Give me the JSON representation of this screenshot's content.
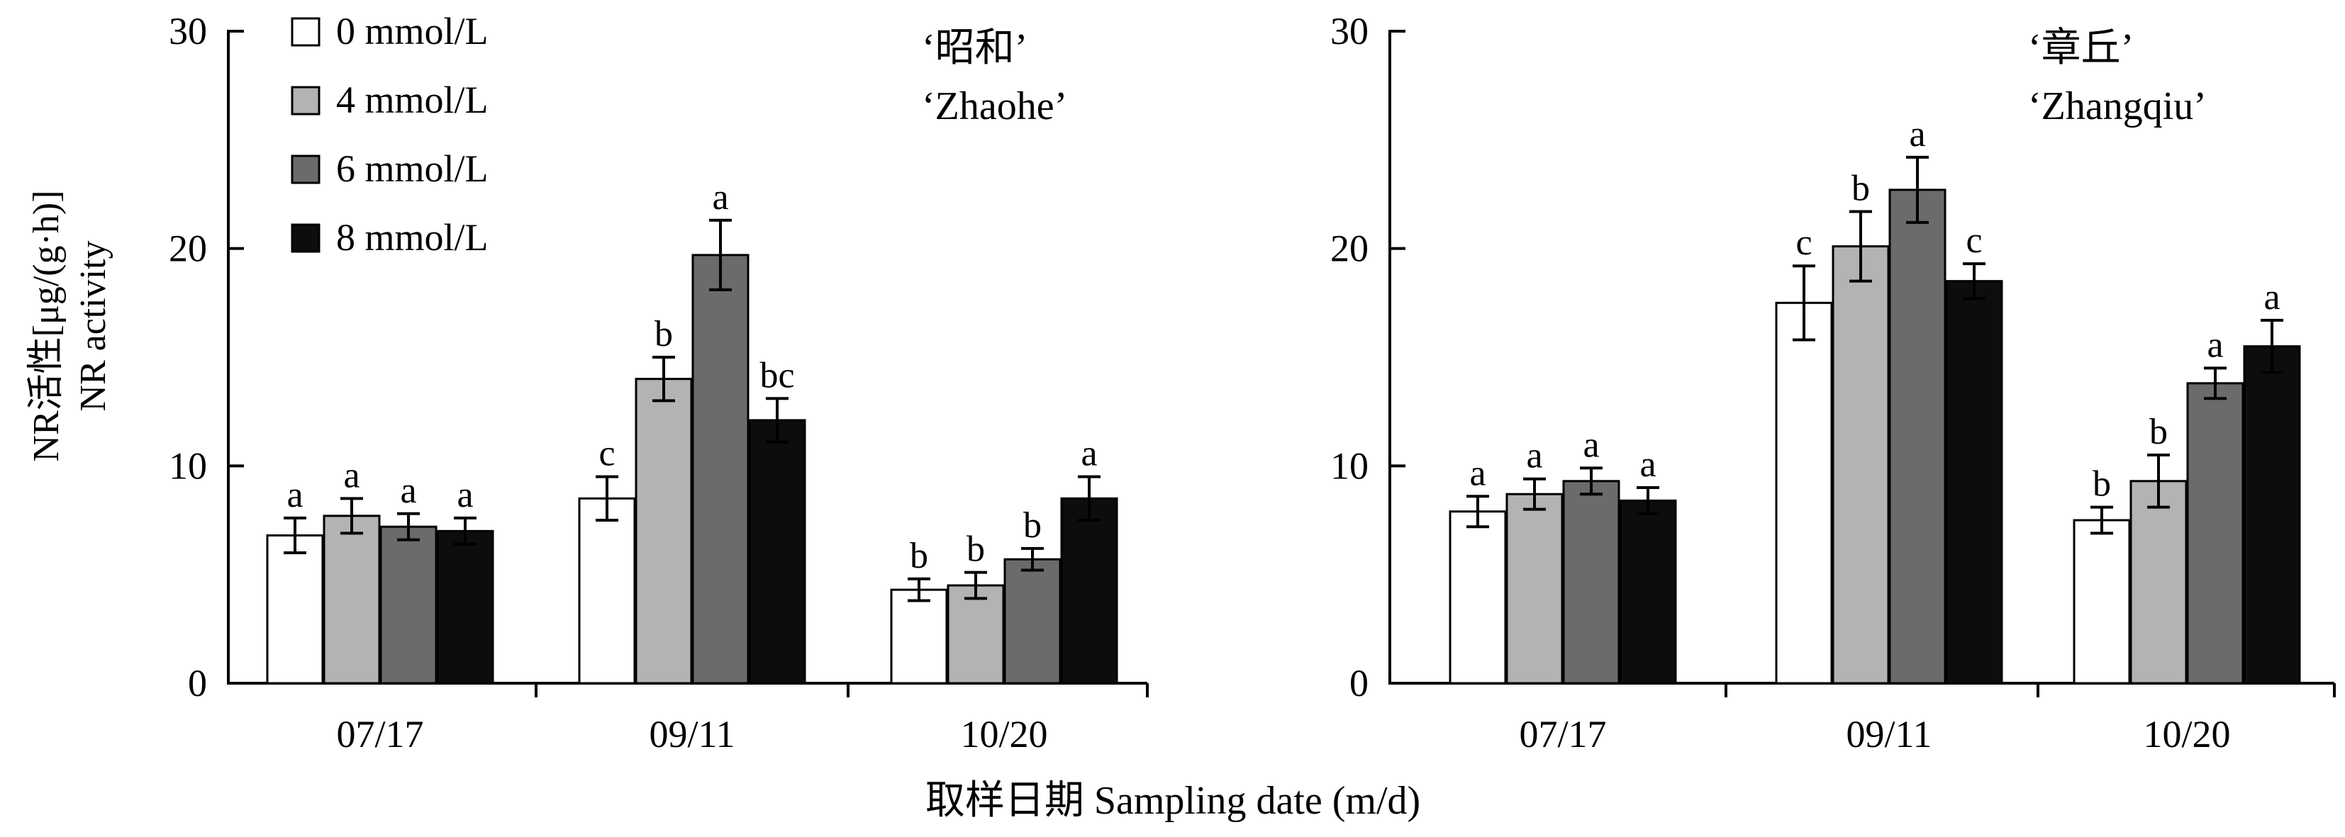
{
  "figure": {
    "xlabel": "取样日期 Sampling date (m/d)",
    "ylabel_cn": "NR活性[μg/(g·h)]",
    "ylabel_en": "NR activity"
  },
  "legend": [
    {
      "label": "0 mmol/L",
      "color": "#ffffff"
    },
    {
      "label": "4 mmol/L",
      "color": "#b3b3b3"
    },
    {
      "label": "6 mmol/L",
      "color": "#6b6b6b"
    },
    {
      "label": "8 mmol/L",
      "color": "#0d0d0d"
    }
  ],
  "chart_data": [
    {
      "type": "bar",
      "title_cn": "‘昭和’",
      "title_en": "‘Zhaohe’",
      "categories": [
        "07/17",
        "09/11",
        "10/20"
      ],
      "ylim": [
        0,
        30
      ],
      "yticks": [
        0,
        10,
        20,
        30
      ],
      "series": [
        {
          "name": "0 mmol/L",
          "values": [
            6.8,
            8.5,
            4.3
          ],
          "errors": [
            0.8,
            1.0,
            0.5
          ],
          "letters": [
            "a",
            "c",
            "b"
          ]
        },
        {
          "name": "4 mmol/L",
          "values": [
            7.7,
            14.0,
            4.5
          ],
          "errors": [
            0.8,
            1.0,
            0.6
          ],
          "letters": [
            "a",
            "b",
            "b"
          ]
        },
        {
          "name": "6 mmol/L",
          "values": [
            7.2,
            19.7,
            5.7
          ],
          "errors": [
            0.6,
            1.6,
            0.5
          ],
          "letters": [
            "a",
            "a",
            "b"
          ]
        },
        {
          "name": "8 mmol/L",
          "values": [
            7.0,
            12.1,
            8.5
          ],
          "errors": [
            0.6,
            1.0,
            1.0
          ],
          "letters": [
            "a",
            "bc",
            "a"
          ]
        }
      ]
    },
    {
      "type": "bar",
      "title_cn": "‘章丘’",
      "title_en": "‘Zhangqiu’",
      "categories": [
        "07/17",
        "09/11",
        "10/20"
      ],
      "ylim": [
        0,
        30
      ],
      "yticks": [
        0,
        10,
        20,
        30
      ],
      "series": [
        {
          "name": "0 mmol/L",
          "values": [
            7.9,
            17.5,
            7.5
          ],
          "errors": [
            0.7,
            1.7,
            0.6
          ],
          "letters": [
            "a",
            "c",
            "b"
          ]
        },
        {
          "name": "4 mmol/L",
          "values": [
            8.7,
            20.1,
            9.3
          ],
          "errors": [
            0.7,
            1.6,
            1.2
          ],
          "letters": [
            "a",
            "b",
            "b"
          ]
        },
        {
          "name": "6 mmol/L",
          "values": [
            9.3,
            22.7,
            13.8
          ],
          "errors": [
            0.6,
            1.5,
            0.7
          ],
          "letters": [
            "a",
            "a",
            "a"
          ]
        },
        {
          "name": "8 mmol/L",
          "values": [
            8.4,
            18.5,
            15.5
          ],
          "errors": [
            0.6,
            0.8,
            1.2
          ],
          "letters": [
            "a",
            "c",
            "a"
          ]
        }
      ]
    }
  ]
}
